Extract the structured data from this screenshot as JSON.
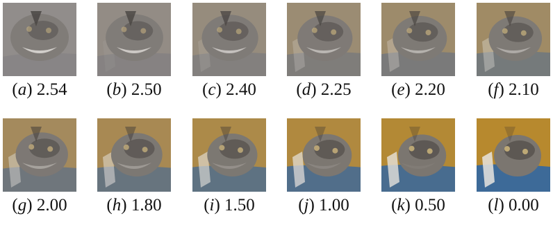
{
  "figure": {
    "panels": [
      {
        "label": "a",
        "value": "2.54",
        "stage": 0.0
      },
      {
        "label": "b",
        "value": "2.50",
        "stage": 0.08
      },
      {
        "label": "c",
        "value": "2.40",
        "stage": 0.18
      },
      {
        "label": "d",
        "value": "2.25",
        "stage": 0.3
      },
      {
        "label": "e",
        "value": "2.20",
        "stage": 0.38
      },
      {
        "label": "f",
        "value": "2.10",
        "stage": 0.46
      },
      {
        "label": "g",
        "value": "2.00",
        "stage": 0.54
      },
      {
        "label": "h",
        "value": "1.80",
        "stage": 0.64
      },
      {
        "label": "i",
        "value": "1.50",
        "stage": 0.74
      },
      {
        "label": "j",
        "value": "1.00",
        "stage": 0.84
      },
      {
        "label": "k",
        "value": "0.50",
        "stage": 0.93
      },
      {
        "label": "l",
        "value": "0.00",
        "stage": 1.0
      }
    ],
    "colors": {
      "background_start": "#8f8a87",
      "background_end": "#b7892e",
      "cloth": "#3d6a98",
      "fur": "#7b7670",
      "fur_dark": "#3a3530",
      "highlight": "#e8e4de"
    }
  }
}
